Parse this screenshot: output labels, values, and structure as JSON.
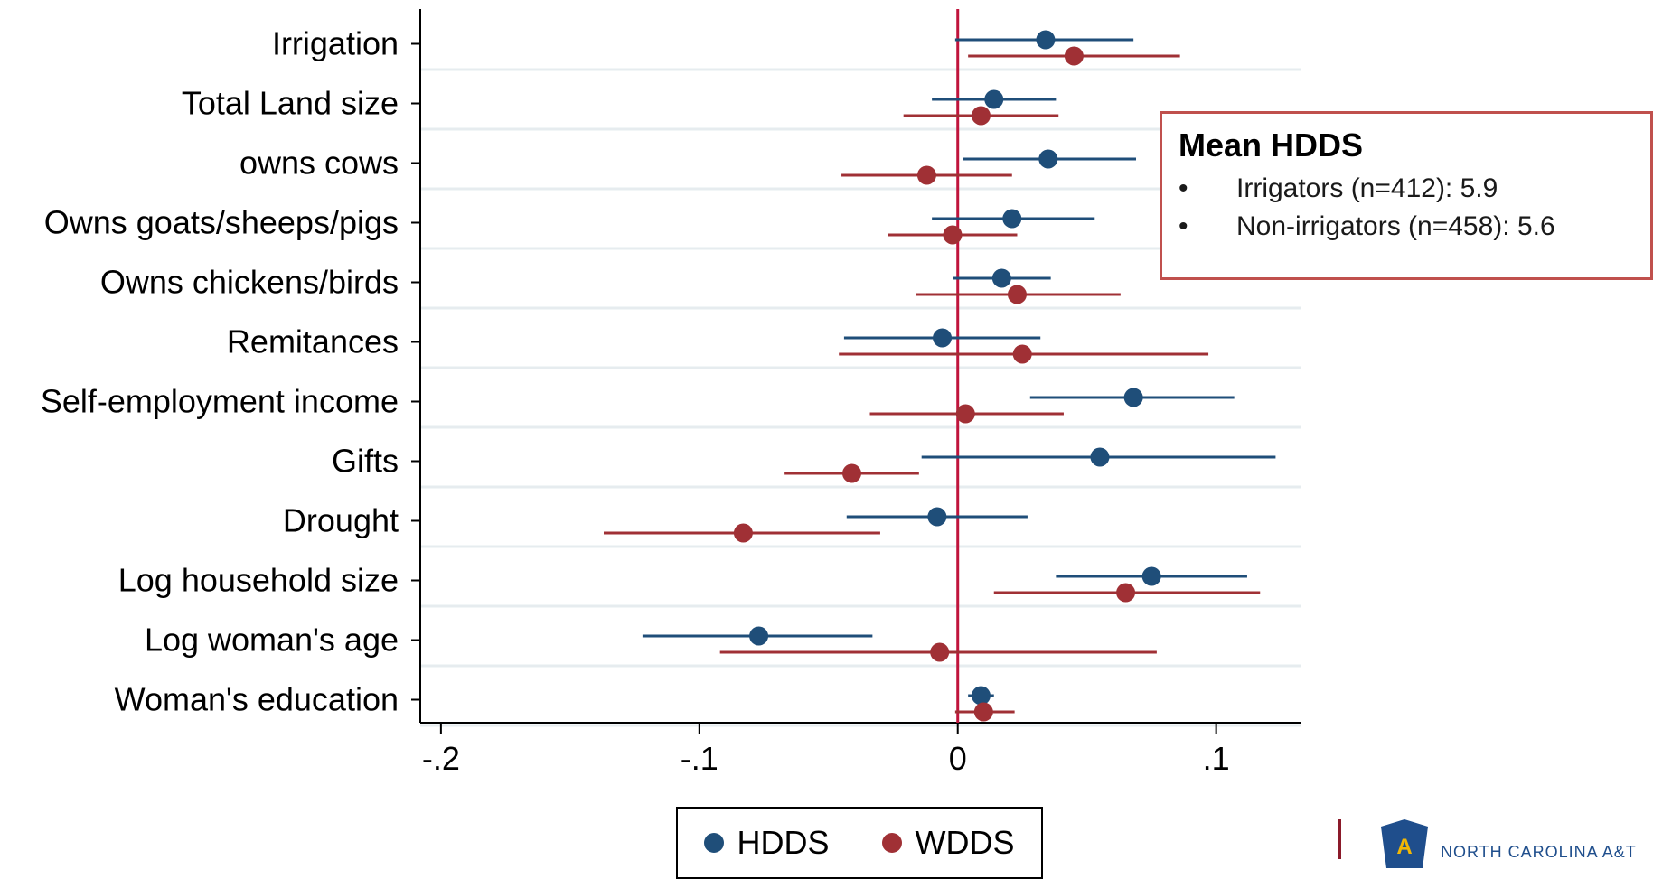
{
  "chart_data": {
    "type": "scatter",
    "subtype": "coefficient-plot",
    "categories": [
      "Irrigation",
      "Total Land size",
      "owns cows",
      "Owns goats/sheeps/pigs",
      "Owns chickens/birds",
      "Remitances",
      "Self-employment income",
      "Gifts",
      "Drought",
      "Log household size",
      "Log woman's age",
      "Woman's education"
    ],
    "series": [
      {
        "name": "HDDS",
        "color": "#1f4e79",
        "estimates": [
          0.034,
          0.014,
          0.035,
          0.021,
          0.017,
          -0.006,
          0.068,
          0.055,
          -0.008,
          0.075,
          -0.077,
          0.009
        ],
        "ci_low": [
          -0.001,
          -0.01,
          0.002,
          -0.01,
          -0.002,
          -0.044,
          0.028,
          -0.014,
          -0.043,
          0.038,
          -0.122,
          0.004
        ],
        "ci_high": [
          0.068,
          0.038,
          0.069,
          0.053,
          0.036,
          0.032,
          0.107,
          0.123,
          0.027,
          0.112,
          -0.033,
          0.014
        ]
      },
      {
        "name": "WDDS",
        "color": "#a03035",
        "estimates": [
          0.045,
          0.009,
          -0.012,
          -0.002,
          0.023,
          0.025,
          0.003,
          -0.041,
          -0.083,
          0.065,
          -0.007,
          0.01
        ],
        "ci_low": [
          0.004,
          -0.021,
          -0.045,
          -0.027,
          -0.016,
          -0.046,
          -0.034,
          -0.067,
          -0.137,
          0.014,
          -0.092,
          -0.001
        ],
        "ci_high": [
          0.086,
          0.039,
          0.021,
          0.023,
          0.063,
          0.097,
          0.041,
          -0.015,
          -0.03,
          0.117,
          0.077,
          0.022
        ]
      }
    ],
    "xlim": [
      -0.208,
      0.133
    ],
    "xticks": [
      -0.2,
      -0.1,
      0,
      0.1
    ],
    "xtick_labels": [
      "-.2",
      "-.1",
      "0",
      ".1"
    ],
    "reference_line": 0,
    "reference_color": "#c0143c",
    "grid": "horizontal",
    "legend": [
      "HDDS",
      "WDDS"
    ],
    "legend_position": "bottom"
  },
  "mean_box": {
    "title": "Mean HDDS",
    "bullet": "•",
    "items": [
      "Irrigators (n=412): 5.9",
      "Non-irrigators (n=458): 5.6"
    ]
  },
  "logo": {
    "text": "NORTH CAROLINA A&T"
  }
}
